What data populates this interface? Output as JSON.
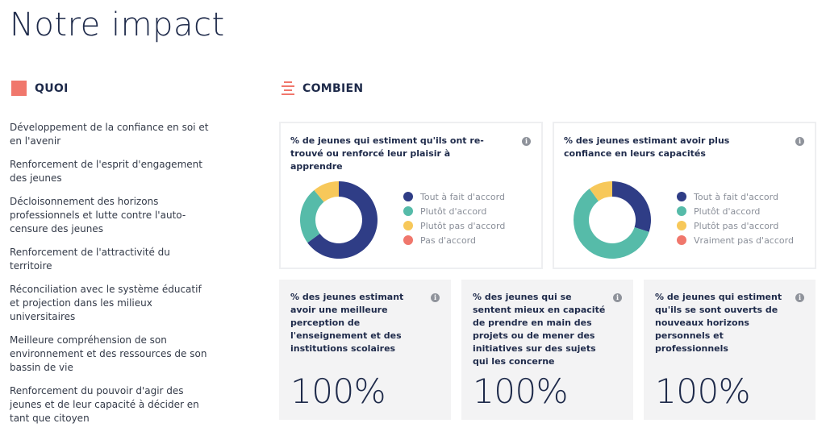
{
  "page": {
    "title": "Notre impact"
  },
  "quoi": {
    "heading": "QUOI",
    "icon": "square-icon",
    "items": [
      "Développement de la confiance en soi et en l'avenir",
      "Renforcement de l'esprit d'engagement des jeunes",
      "Décloisonnement des horizons professionnels et lutte contre l'auto-censure des jeunes",
      "Renforcement de l'attractivité du territoire",
      "Réconciliation avec le système éducatif et projection dans les milieux universitaires",
      "Meilleure compréhension de son environnement et des ressources de son bassin de vie",
      "Renforcement du pouvoir d'agir des jeunes et de leur capacité à décider en tant que citoyen"
    ]
  },
  "combien": {
    "heading": "COMBIEN",
    "icon": "bars-icon"
  },
  "colors": {
    "accent": "#f0776c",
    "navy": "#2f3d86",
    "teal": "#56bba9",
    "yellow": "#f7c85a",
    "coral": "#f0776c"
  },
  "stats": [
    {
      "title": "% des jeunes estimant avoir une meilleure perception de l'enseignement et des institutions scolaires",
      "value": "100%"
    },
    {
      "title": "% des jeunes qui se sentent mieux en capacité de prendre en main des projets ou de mener des initiatives sur des sujets qui les concerne",
      "value": "100%"
    },
    {
      "title": "% de jeunes qui estiment qu'ils se sont ouverts de nouveaux horizons personnels et professionnels",
      "value": "100%"
    }
  ],
  "chart_data": [
    {
      "type": "pie",
      "title": "% de jeunes qui estiment qu'ils ont re-trouvé ou renforcé leur plaisir à apprendre",
      "categories": [
        "Tout à fait d'accord",
        "Plutôt d'accord",
        "Plutôt pas d'accord",
        "Pas d'accord"
      ],
      "values": [
        65,
        24,
        11,
        0
      ],
      "colors": [
        "#2f3d86",
        "#56bba9",
        "#f7c85a",
        "#f0776c"
      ],
      "donut": true,
      "legend": "right"
    },
    {
      "type": "pie",
      "title": "% des jeunes estimant avoir plus confiance en leurs capacités",
      "categories": [
        "Tout à fait d'accord",
        "Plutôt d'accord",
        "Plutôt pas d'accord",
        "Vraiment pas d'accord"
      ],
      "values": [
        30,
        60,
        10,
        0
      ],
      "colors": [
        "#2f3d86",
        "#56bba9",
        "#f7c85a",
        "#f0776c"
      ],
      "donut": true,
      "legend": "right"
    }
  ]
}
